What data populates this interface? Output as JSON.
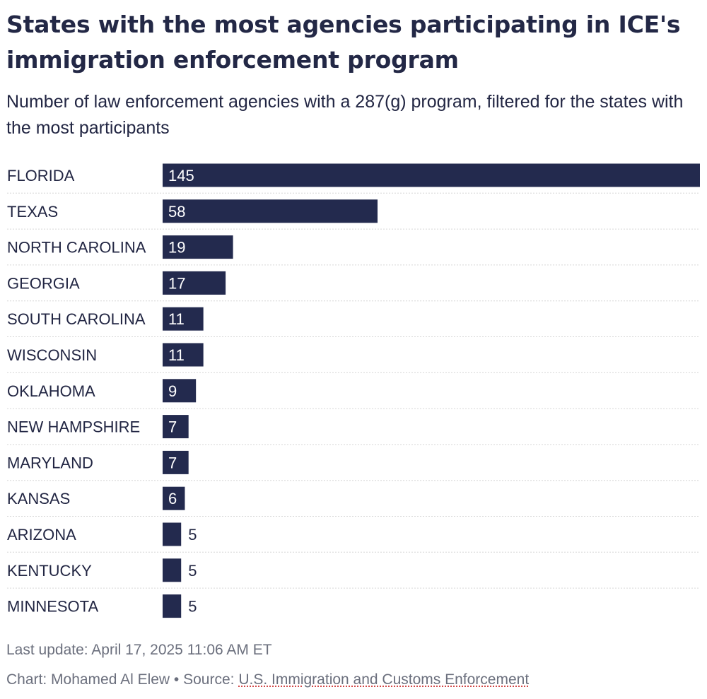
{
  "title": "States with the most agencies participating in ICE's immigration enforcement program",
  "subtitle": "Number of law enforcement agencies with a 287(g) program, filtered for the states with the most participants",
  "footer": {
    "last_update": "Last update: April 17, 2025 11:06 AM ET",
    "credit_prefix": "Chart: Mohamed Al Elew • Source: ",
    "source_name": "U.S. Immigration and Customs Enforcement"
  },
  "colors": {
    "bar": "#232a4e",
    "label_inside": "#ffffff",
    "label_outside": "#222643",
    "gridline": "#d6d6d6"
  },
  "chart_data": {
    "type": "bar",
    "orientation": "horizontal",
    "categories": [
      "FLORIDA",
      "TEXAS",
      "NORTH CAROLINA",
      "GEORGIA",
      "SOUTH CAROLINA",
      "WISCONSIN",
      "OKLAHOMA",
      "NEW HAMPSHIRE",
      "MARYLAND",
      "KANSAS",
      "ARIZONA",
      "KENTUCKY",
      "MINNESOTA"
    ],
    "values": [
      145,
      58,
      19,
      17,
      11,
      11,
      9,
      7,
      7,
      6,
      5,
      5,
      5
    ],
    "xlim": [
      0,
      145
    ],
    "grid": false,
    "legend": "none"
  }
}
